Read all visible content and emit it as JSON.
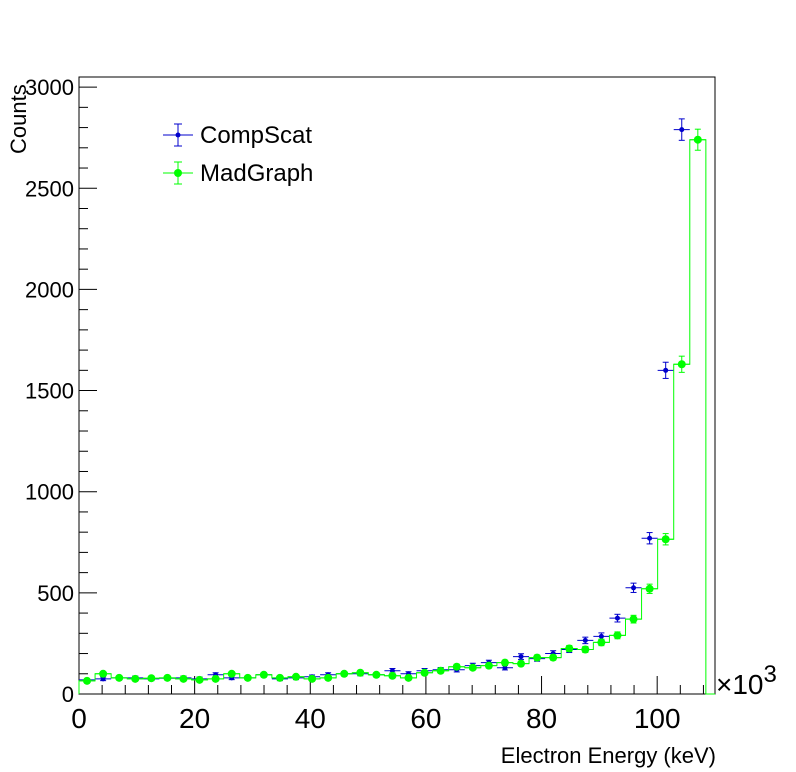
{
  "chart_data": {
    "type": "histogram",
    "xlabel": "Electron Energy (keV)",
    "ylabel": "Counts",
    "x_multiplier_label": "×10",
    "x_multiplier_exponent": "3",
    "xlim": [
      0,
      110
    ],
    "ylim": [
      0,
      3050
    ],
    "x_ticks": [
      0,
      20,
      40,
      60,
      80,
      100
    ],
    "y_ticks": [
      0,
      500,
      1000,
      1500,
      2000,
      2500,
      3000
    ],
    "bin_width": 2.78,
    "grid": false,
    "legend_placement": "top-left",
    "series": [
      {
        "name": "CompScat",
        "color": "#0000cc",
        "marker": "small-dot",
        "draw_histogram": false,
        "values": [
          70,
          75,
          80,
          80,
          75,
          78,
          80,
          75,
          95,
          80,
          80,
          95,
          75,
          80,
          85,
          95,
          100,
          100,
          95,
          115,
          100,
          115,
          120,
          120,
          140,
          155,
          130,
          185,
          175,
          200,
          220,
          265,
          285,
          375,
          525,
          770,
          1600,
          2790
        ],
        "errors": [
          8,
          9,
          9,
          9,
          9,
          9,
          9,
          9,
          10,
          9,
          9,
          10,
          9,
          9,
          9,
          10,
          10,
          10,
          10,
          11,
          10,
          11,
          11,
          11,
          12,
          12,
          11,
          14,
          13,
          14,
          15,
          16,
          17,
          19,
          23,
          28,
          40,
          53
        ]
      },
      {
        "name": "MadGraph",
        "color": "#00ff00",
        "marker": "large-dot",
        "draw_histogram": true,
        "values": [
          65,
          100,
          80,
          75,
          78,
          80,
          75,
          70,
          75,
          100,
          80,
          95,
          80,
          85,
          75,
          80,
          100,
          105,
          95,
          90,
          80,
          105,
          115,
          135,
          130,
          140,
          155,
          150,
          180,
          180,
          225,
          220,
          255,
          290,
          370,
          520,
          765,
          1630,
          2740
        ],
        "errors": [
          8,
          10,
          9,
          9,
          9,
          9,
          9,
          8,
          9,
          10,
          9,
          10,
          9,
          9,
          9,
          9,
          10,
          10,
          10,
          9,
          9,
          10,
          11,
          12,
          11,
          12,
          12,
          12,
          13,
          13,
          15,
          15,
          16,
          17,
          19,
          23,
          28,
          40,
          52
        ]
      }
    ]
  }
}
